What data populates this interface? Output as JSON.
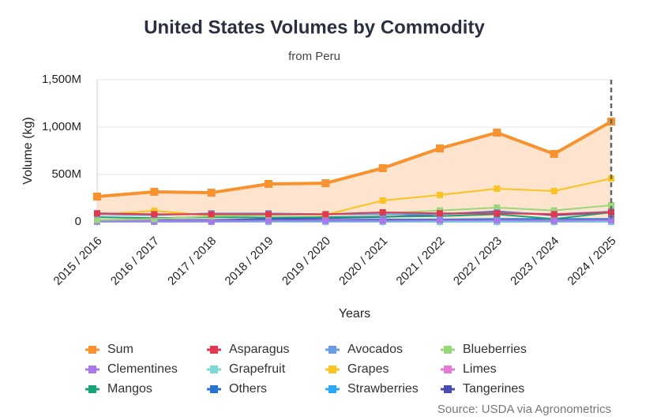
{
  "chart_data": {
    "type": "line",
    "title": "United States Volumes by Commodity",
    "subtitle": "from Peru",
    "x_label": "Years",
    "y_label": "Volume (kg)",
    "source": "Source: USDA via Agronometrics",
    "categories": [
      "2015 / 2016",
      "2016 / 2017",
      "2017 / 2018",
      "2018 / 2019",
      "2019 / 2020",
      "2020 / 2021",
      "2021 / 2022",
      "2022 / 2023",
      "2023 / 2024",
      "2024 / 2025"
    ],
    "ylim": [
      0,
      1500000000
    ],
    "yticks": [
      0,
      {
        "value": 500000000,
        "label": "500M"
      },
      {
        "value": 1000000000,
        "label": "1,000M"
      },
      {
        "value": 1500000000,
        "label": "1,500M"
      }
    ],
    "grid": true,
    "area_color": "#fde4cf",
    "series": [
      {
        "name": "Sum",
        "color": "#f7922f",
        "values": [
          267000000,
          317000000,
          308000000,
          400000000,
          408000000,
          567000000,
          775000000,
          942000000,
          717000000,
          1058000000
        ]
      },
      {
        "name": "Asparagus",
        "color": "#e0394f",
        "values": [
          90000000,
          80000000,
          80000000,
          80000000,
          80000000,
          100000000,
          90000000,
          90000000,
          80000000,
          100000000
        ]
      },
      {
        "name": "Avocados",
        "color": "#6b9be0",
        "values": [
          80000000,
          70000000,
          90000000,
          90000000,
          80000000,
          80000000,
          80000000,
          100000000,
          80000000,
          110000000
        ]
      },
      {
        "name": "Blueberries",
        "color": "#9ad67a",
        "values": [
          20000000,
          30000000,
          60000000,
          70000000,
          80000000,
          90000000,
          120000000,
          150000000,
          120000000,
          175000000
        ]
      },
      {
        "name": "Clementines",
        "color": "#a779e9",
        "values": [
          5000000,
          5000000,
          5000000,
          10000000,
          10000000,
          10000000,
          15000000,
          15000000,
          10000000,
          15000000
        ]
      },
      {
        "name": "Grapefruit",
        "color": "#7dd9d6",
        "values": [
          2000000,
          2000000,
          2000000,
          2000000,
          2000000,
          2000000,
          3000000,
          3000000,
          3000000,
          3000000
        ]
      },
      {
        "name": "Grapes",
        "color": "#fbc320",
        "values": [
          75000000,
          117000000,
          67000000,
          75000000,
          75000000,
          225000000,
          283000000,
          350000000,
          325000000,
          458000000
        ]
      },
      {
        "name": "Limes",
        "color": "#e07cd6",
        "values": [
          10000000,
          10000000,
          10000000,
          10000000,
          10000000,
          10000000,
          12000000,
          12000000,
          12000000,
          15000000
        ]
      },
      {
        "name": "Mangos",
        "color": "#1aa37a",
        "values": [
          50000000,
          40000000,
          50000000,
          45000000,
          50000000,
          55000000,
          60000000,
          80000000,
          30000000,
          100000000
        ]
      },
      {
        "name": "Others",
        "color": "#2a74d0",
        "values": [
          20000000,
          20000000,
          20000000,
          20000000,
          20000000,
          25000000,
          25000000,
          30000000,
          30000000,
          30000000
        ]
      },
      {
        "name": "Strawberries",
        "color": "#2ba8f5",
        "values": [
          1000000,
          1000000,
          1000000,
          1000000,
          1000000,
          1000000,
          1000000,
          1000000,
          1000000,
          1000000
        ]
      },
      {
        "name": "Tangerines",
        "color": "#4b4bb0",
        "values": [
          10000000,
          15000000,
          20000000,
          30000000,
          40000000,
          50000000,
          80000000,
          110000000,
          70000000,
          100000000
        ]
      }
    ]
  }
}
